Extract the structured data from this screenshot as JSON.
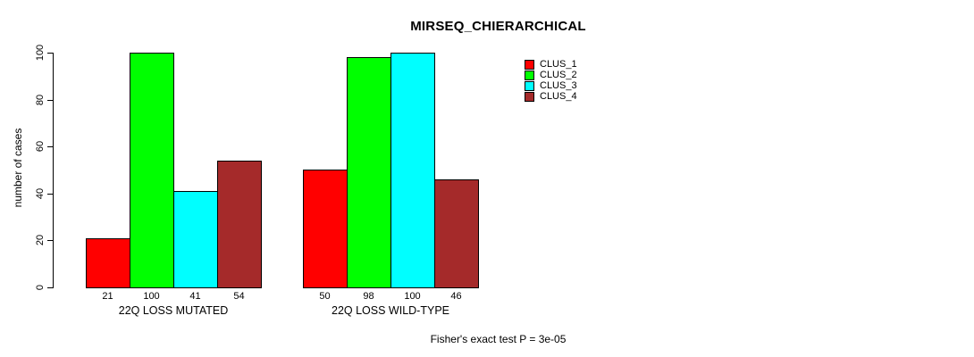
{
  "chart_data": {
    "type": "bar",
    "title": "MIRSEQ_CHIERARCHICAL",
    "ylabel": "number of cases",
    "ylim": [
      0,
      100
    ],
    "yticks": [
      0,
      20,
      40,
      60,
      80,
      100
    ],
    "categories": [
      "22Q LOSS MUTATED",
      "22Q LOSS WILD-TYPE"
    ],
    "series": [
      {
        "name": "CLUS_1",
        "color": "#ff0000",
        "values": [
          21,
          50
        ]
      },
      {
        "name": "CLUS_2",
        "color": "#00ff00",
        "values": [
          100,
          98
        ]
      },
      {
        "name": "CLUS_3",
        "color": "#00ffff",
        "values": [
          41,
          100
        ]
      },
      {
        "name": "CLUS_4",
        "color": "#a52a2a",
        "values": [
          54,
          46
        ]
      }
    ],
    "bar_value_labels_shown": true,
    "grid": false,
    "legend_position": "top-right",
    "annotation": "Fisher's exact test P = 3e-05",
    "axis_color": "#000000",
    "background_color": "#ffffff"
  }
}
